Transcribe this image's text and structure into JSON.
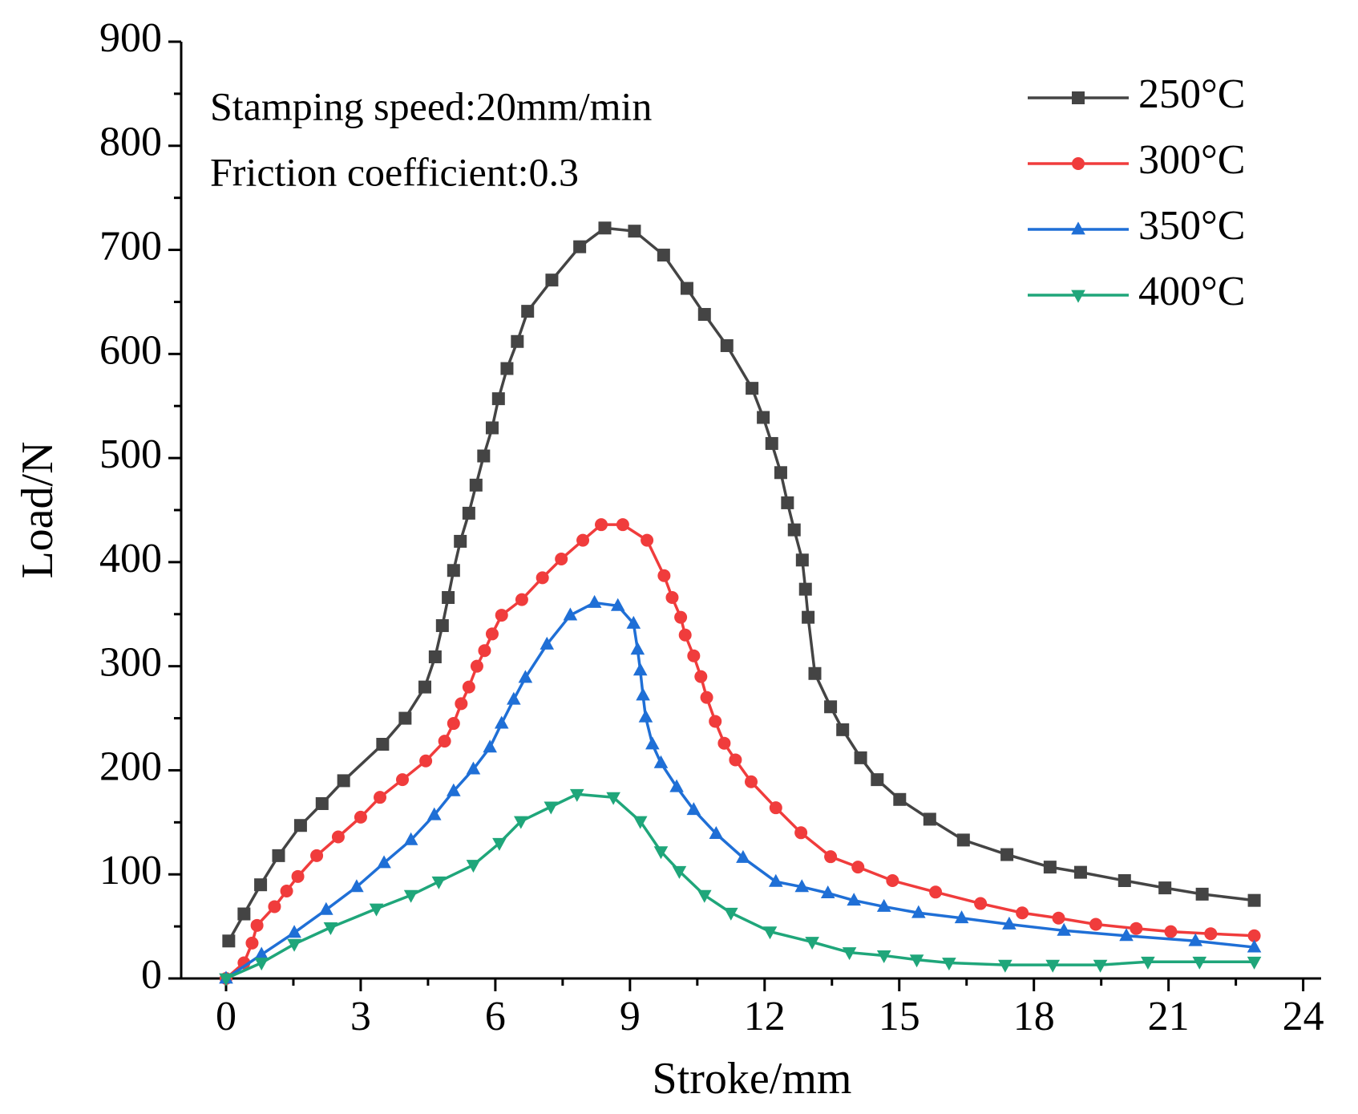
{
  "chart_data": {
    "type": "line",
    "xlabel": "Stroke/mm",
    "ylabel": "Load/N",
    "annotations": [
      "Stamping speed:20mm/min",
      "Friction coefficient:0.3"
    ],
    "xlim": [
      -1,
      24.4
    ],
    "xticks": [
      0,
      3,
      6,
      9,
      12,
      15,
      18,
      21,
      24
    ],
    "ylim": [
      0,
      900
    ],
    "yticks": [
      0,
      100,
      200,
      300,
      400,
      500,
      600,
      700,
      800,
      900
    ],
    "legend": "upper right",
    "series": [
      {
        "name": "250°C",
        "color": "#444444",
        "marker": "square",
        "x": [
          0.06,
          0.4,
          0.77,
          1.17,
          1.66,
          2.14,
          2.62,
          3.49,
          3.99,
          4.43,
          4.66,
          4.82,
          4.95,
          5.07,
          5.22,
          5.41,
          5.57,
          5.74,
          5.93,
          6.07,
          6.26,
          6.49,
          6.72,
          7.26,
          7.88,
          8.44,
          9.1,
          9.75,
          10.27,
          10.66,
          11.16,
          11.72,
          11.97,
          12.16,
          12.36,
          12.51,
          12.66,
          12.84,
          12.91,
          12.97,
          13.12,
          13.47,
          13.74,
          14.14,
          14.51,
          15.01,
          15.68,
          16.43,
          17.4,
          18.36,
          19.04,
          20.02,
          20.92,
          21.75,
          22.91
        ],
        "values": [
          36,
          62,
          90,
          118,
          147,
          168,
          190,
          225,
          250,
          280,
          309,
          339,
          366,
          392,
          420,
          447,
          474,
          502,
          529,
          557,
          586,
          612,
          641,
          671,
          703,
          721,
          718,
          695,
          663,
          638,
          608,
          567,
          539,
          514,
          486,
          457,
          431,
          402,
          374,
          347,
          293,
          261,
          239,
          212,
          191,
          172,
          153,
          133,
          119,
          107,
          102,
          94,
          87,
          81,
          75
        ]
      },
      {
        "name": "300°C",
        "color": "#f03c3c",
        "marker": "circle",
        "x": [
          0,
          0.4,
          0.58,
          0.69,
          1.08,
          1.35,
          1.6,
          2.02,
          2.5,
          3.0,
          3.43,
          3.93,
          4.45,
          4.87,
          5.07,
          5.24,
          5.41,
          5.59,
          5.76,
          5.93,
          6.14,
          6.59,
          7.05,
          7.47,
          7.95,
          8.36,
          8.84,
          9.38,
          9.76,
          9.94,
          10.13,
          10.23,
          10.42,
          10.58,
          10.71,
          10.9,
          11.1,
          11.35,
          11.7,
          12.25,
          12.81,
          13.47,
          14.08,
          14.85,
          15.81,
          16.81,
          17.74,
          18.55,
          19.38,
          20.28,
          21.05,
          21.94,
          22.91
        ],
        "values": [
          0,
          15,
          34,
          51,
          69,
          84,
          98,
          118,
          136,
          155,
          174,
          191,
          209,
          228,
          245,
          264,
          280,
          300,
          315,
          331,
          349,
          364,
          385,
          403,
          421,
          436,
          436,
          421,
          387,
          366,
          347,
          330,
          310,
          290,
          270,
          247,
          226,
          210,
          189,
          164,
          140,
          117,
          107,
          94,
          83,
          72,
          63,
          58,
          52,
          48,
          45,
          43,
          41
        ]
      },
      {
        "name": "350°C",
        "color": "#1f6fd6",
        "marker": "triangle",
        "x": [
          0,
          0.79,
          1.52,
          2.23,
          2.91,
          3.52,
          4.12,
          4.64,
          5.07,
          5.51,
          5.88,
          6.14,
          6.41,
          6.67,
          7.15,
          7.67,
          8.21,
          8.73,
          9.08,
          9.17,
          9.23,
          9.29,
          9.35,
          9.5,
          9.69,
          10.04,
          10.42,
          10.92,
          11.52,
          12.25,
          12.83,
          13.41,
          13.99,
          14.66,
          15.43,
          16.39,
          17.45,
          18.67,
          20.06,
          21.6,
          22.91
        ],
        "values": [
          0,
          23,
          44,
          66,
          88,
          111,
          133,
          157,
          180,
          201,
          222,
          245,
          268,
          289,
          321,
          349,
          361,
          358,
          341,
          316,
          296,
          272,
          251,
          225,
          207,
          184,
          162,
          139,
          116,
          93,
          88,
          82,
          75,
          69,
          63,
          58,
          52,
          46,
          41,
          36,
          30
        ]
      },
      {
        "name": "400°C",
        "color": "#1fa67a",
        "marker": "down-triangle",
        "x": [
          0,
          0.79,
          1.52,
          2.33,
          3.35,
          4.12,
          4.74,
          5.51,
          6.09,
          6.57,
          7.24,
          7.82,
          8.63,
          9.23,
          9.69,
          10.1,
          10.66,
          11.25,
          12.12,
          13.06,
          13.89,
          14.66,
          15.39,
          16.11,
          17.36,
          18.42,
          19.48,
          20.54,
          21.69,
          22.91
        ],
        "values": [
          0,
          15,
          33,
          49,
          67,
          80,
          93,
          109,
          130,
          151,
          165,
          177,
          174,
          151,
          122,
          103,
          80,
          63,
          45,
          35,
          25,
          22,
          18,
          15,
          13,
          13,
          13,
          16,
          16,
          16
        ]
      }
    ]
  }
}
